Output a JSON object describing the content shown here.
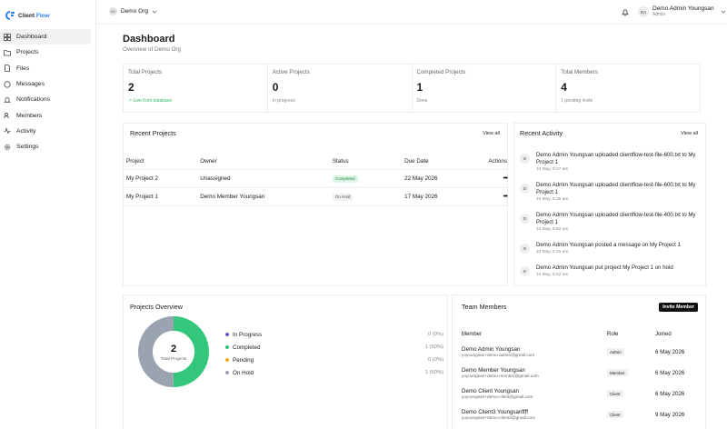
{
  "brand": {
    "name_part1": "Client",
    "name_part2": "Flow"
  },
  "sidebar": {
    "items": [
      {
        "label": "Dashboard",
        "icon": "dashboard-icon"
      },
      {
        "label": "Projects",
        "icon": "folder-icon"
      },
      {
        "label": "Files",
        "icon": "file-icon"
      },
      {
        "label": "Messages",
        "icon": "chat-icon"
      },
      {
        "label": "Notifications",
        "icon": "bell-icon"
      },
      {
        "label": "Members",
        "icon": "users-icon"
      },
      {
        "label": "Activity",
        "icon": "activity-icon"
      },
      {
        "label": "Settings",
        "icon": "gear-icon"
      }
    ]
  },
  "topbar": {
    "org_avatar": "DO",
    "org_name": "Demo Org",
    "user_initials": "DA",
    "user_name": "Demo Admin Youngsan",
    "user_role": "Admin"
  },
  "page": {
    "title": "Dashboard",
    "subtitle": "Overview of Demo Org"
  },
  "stats": [
    {
      "label": "Total Projects",
      "value": "2",
      "foot": "Live from database"
    },
    {
      "label": "Active Projects",
      "value": "0",
      "foot": "In progress"
    },
    {
      "label": "Completed Projects",
      "value": "1",
      "foot": "Done"
    },
    {
      "label": "Total Members",
      "value": "4",
      "foot": "1 pending invite"
    }
  ],
  "recent_projects": {
    "title": "Recent Projects",
    "view_all": "View all",
    "headers": [
      "Project",
      "Owner",
      "Status",
      "Due Date",
      "Actions"
    ],
    "rows": [
      {
        "project": "My Project 2",
        "owner": "Unassigned",
        "status": "Completed",
        "due": "22 May 2026",
        "actions": "•••"
      },
      {
        "project": "My Project 1",
        "owner": "Demo Member Youngsan",
        "status": "On Hold",
        "due": "17 May 2026",
        "actions": "•••"
      }
    ]
  },
  "recent_activity": {
    "title": "Recent Activity",
    "view_all": "View all",
    "items": [
      {
        "avatar": "D",
        "text": "Demo Admin Youngsan uploaded clientflow-test-file-600.txt to My Project 1",
        "time": "10 May, 6:47 am"
      },
      {
        "avatar": "D",
        "text": "Demo Admin Youngsan uploaded clientflow-test-file-600.txt to My Project 1",
        "time": "10 May, 5:38 am"
      },
      {
        "avatar": "D",
        "text": "Demo Admin Youngsan uploaded clientflow-test-file-400.txt to My Project 1",
        "time": "10 May, 5:52 am"
      },
      {
        "avatar": "D",
        "text": "Demo Admin Youngsan posted a message on My Project 1",
        "time": "10 May, 5:45 am"
      },
      {
        "avatar": "D",
        "text": "Demo Admin Youngsan put project My Project 1 on hold",
        "time": "10 May, 5:42 am"
      }
    ]
  },
  "projects_overview": {
    "title": "Projects Overview",
    "total_value": "2",
    "total_label": "Total Projects",
    "legend": [
      {
        "label": "In Progress",
        "value": "0 (0%)",
        "color": "#5b5bd6"
      },
      {
        "label": "Completed",
        "value": "1 (50%)",
        "color": "#34c77b"
      },
      {
        "label": "Pending",
        "value": "0 (0%)",
        "color": "#f5a623"
      },
      {
        "label": "On Hold",
        "value": "1 (50%)",
        "color": "#9aa3b0"
      }
    ]
  },
  "team_members": {
    "title": "Team Members",
    "invite_label": "Invite Member",
    "headers": [
      "Member",
      "Role",
      "Joined"
    ],
    "rows": [
      {
        "name": "Demo Admin Youngsan",
        "email": "yoyoungsan+demo-admin@gmail.com",
        "role": "Admin",
        "joined": "6 May 2026"
      },
      {
        "name": "Demo Member Youngsan",
        "email": "yoyoungsan+demo-member@gmail.com",
        "role": "Member",
        "joined": "6 May 2026"
      },
      {
        "name": "Demo Client Youngsan",
        "email": "yoyoungsan+demo-client@gmail.com",
        "role": "Client",
        "joined": "6 May 2026"
      },
      {
        "name": "Demo Client3 Youngsanffff",
        "email": "yoyoungsan+demo-client3@gmail.com",
        "role": "Client",
        "joined": "9 May 2026"
      }
    ]
  }
}
